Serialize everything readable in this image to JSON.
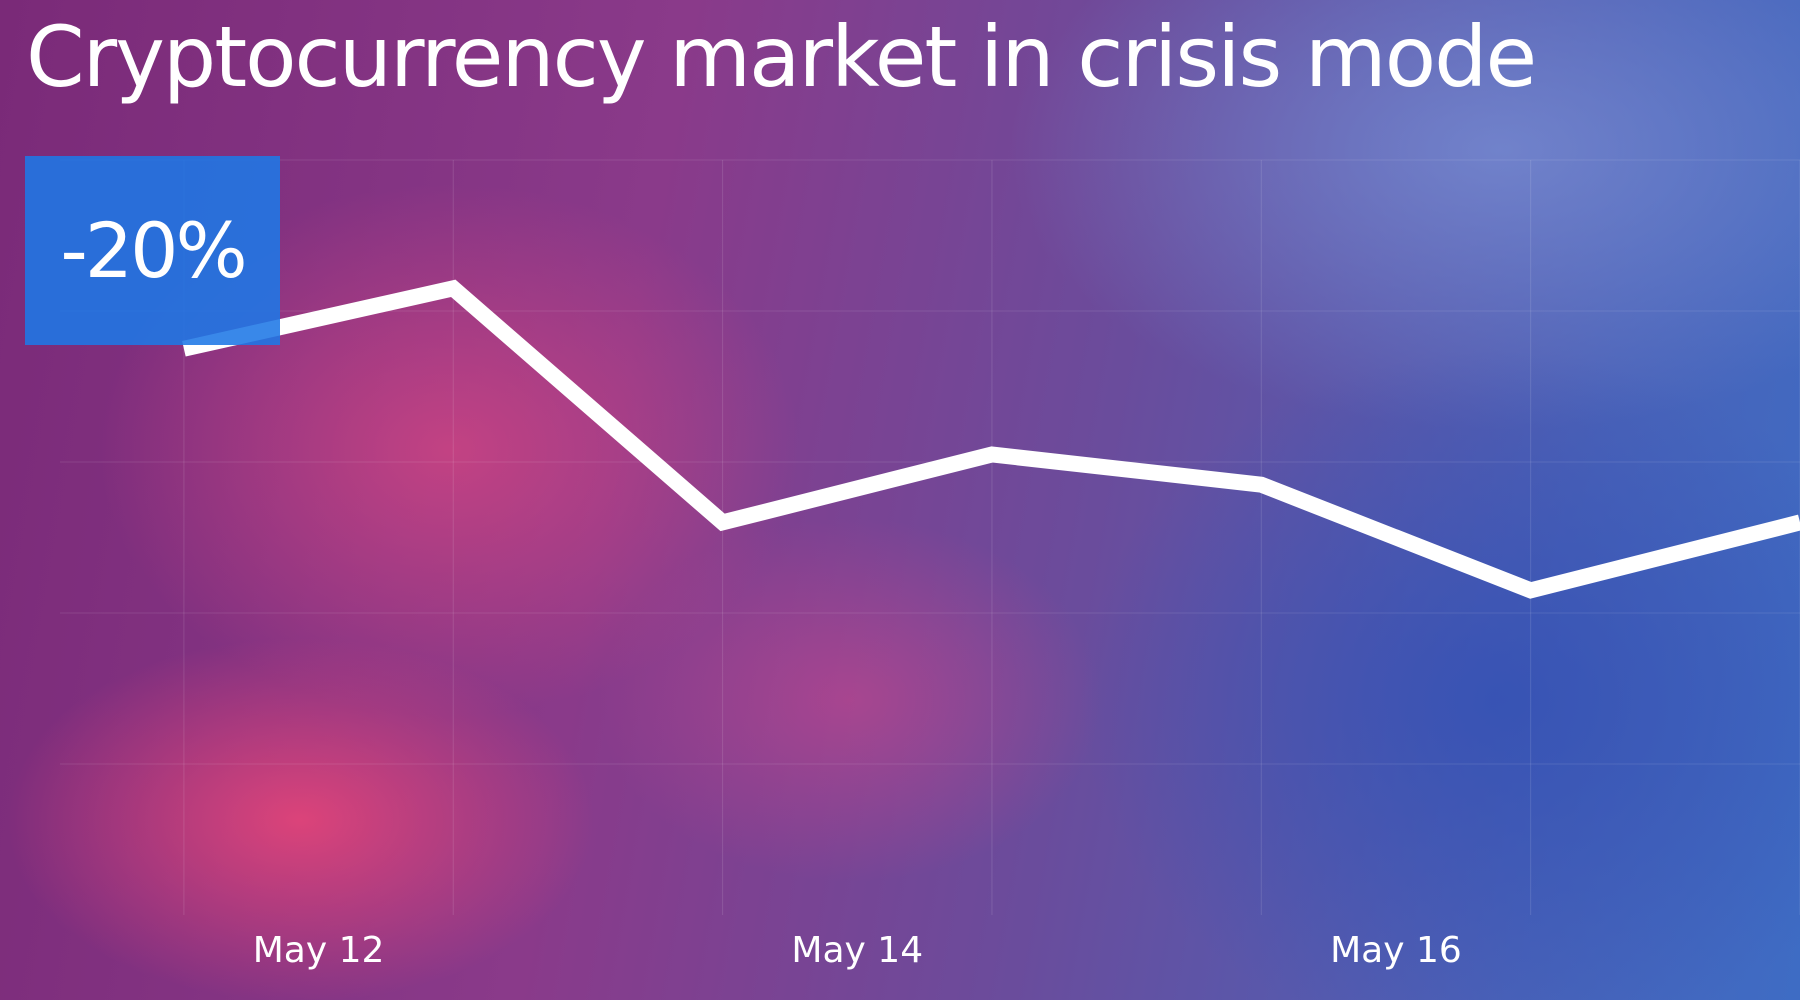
{
  "chart_data": {
    "type": "line",
    "title": "Cryptocurrency market in crisis mode",
    "annotation": "-20%",
    "x": [
      "May 11.5",
      "May 12.5",
      "May 13.5",
      "May 14.5",
      "May 15.5",
      "May 16.5",
      "May 17.5"
    ],
    "x_tick_labels": [
      "May 12",
      "May 14",
      "May 16"
    ],
    "x_tick_positions": [
      12,
      14,
      16
    ],
    "x_values_day": [
      11.5,
      12.5,
      13.5,
      14.5,
      15.5,
      16.5,
      17.5
    ],
    "series": [
      {
        "values": [
          7.5,
          8.3,
          5.2,
          6.1,
          5.7,
          4.3,
          5.2
        ]
      }
    ],
    "ylim": [
      0,
      10
    ],
    "xlim": [
      11.04,
      17.5
    ],
    "grid": true,
    "line_color": "#ffffff",
    "annotation_color": "#1e78e6"
  }
}
